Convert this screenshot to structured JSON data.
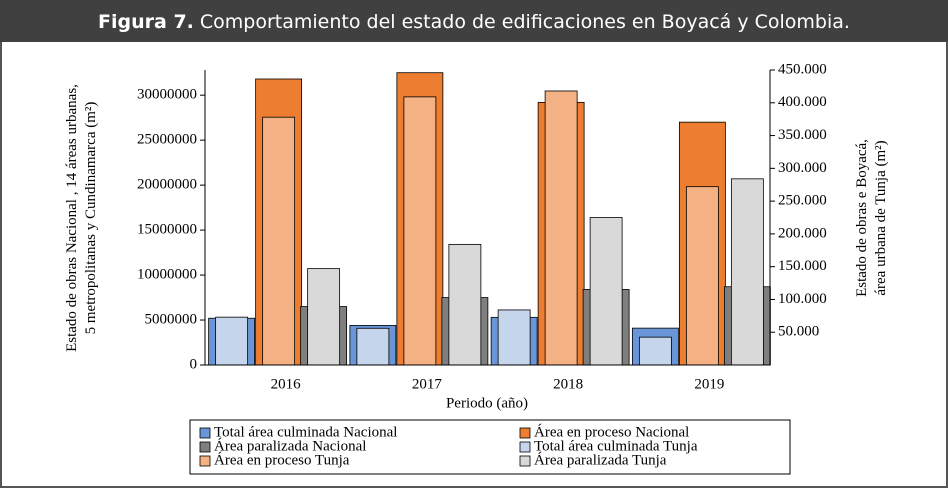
{
  "chart_data": {
    "type": "bar",
    "title_label": "Figura 7.",
    "title": "Comportamiento del estado de edificaciones en Boyacá y Colombia.",
    "y_label": [
      "Estado de obras Nacional , 14  áreas urbanas,",
      "5 metropolitanas y Cundinamarca (m²)"
    ],
    "y2_label": [
      "Estado de obras e Boyacá,",
      "área urbana de Tunja (m²)"
    ],
    "x_label": "Periodo (año)",
    "categories": [
      "2016",
      "2017",
      "2018",
      "2019"
    ],
    "series": [
      {
        "name": "Total área culminada Nacional",
        "color": "#6a95d8",
        "values": [
          5200000,
          4400000,
          5300000,
          4100000
        ]
      },
      {
        "name": "Área en proceso Nacional",
        "color": "#ed7d31",
        "values": [
          31800000,
          32500000,
          29200000,
          27000000
        ]
      },
      {
        "name": "Área paralizada Nacional",
        "color": "#7f7f7f",
        "values": [
          6500000,
          7500000,
          8400000,
          8700000
        ]
      },
      {
        "name": "Total área culminada Tunja",
        "color": "#c5d5ec",
        "axis": "y2",
        "values": [
          73000,
          56000,
          84000,
          42500
        ]
      },
      {
        "name": "Área en proceso Tunja",
        "color": "#f4b183",
        "axis": "y2",
        "values": [
          378000,
          409000,
          418000,
          272000
        ]
      },
      {
        "name": "Área paralizada Tunja",
        "color": "#d9d9d9",
        "axis": "y2",
        "values": [
          147000,
          184000,
          225000,
          284000
        ]
      }
    ],
    "ylim": [
      0,
      32800000
    ],
    "yticks": [
      0,
      5000000,
      10000000,
      15000000,
      20000000,
      25000000,
      30000000
    ],
    "y2lim": [
      0,
      450000
    ],
    "y2ticks": [
      {
        "value": 50000,
        "label": "50.000"
      },
      {
        "value": 100000,
        "label": "100.000"
      },
      {
        "value": 150000,
        "label": "150.000"
      },
      {
        "value": 200000,
        "label": "200.000"
      },
      {
        "value": 250000,
        "label": "250.000"
      },
      {
        "value": 300000,
        "label": "300.000"
      },
      {
        "value": 350000,
        "label": "350.000"
      },
      {
        "value": 400000,
        "label": "400.000"
      },
      {
        "value": 450000,
        "label": "450.000"
      }
    ],
    "grid": false
  }
}
